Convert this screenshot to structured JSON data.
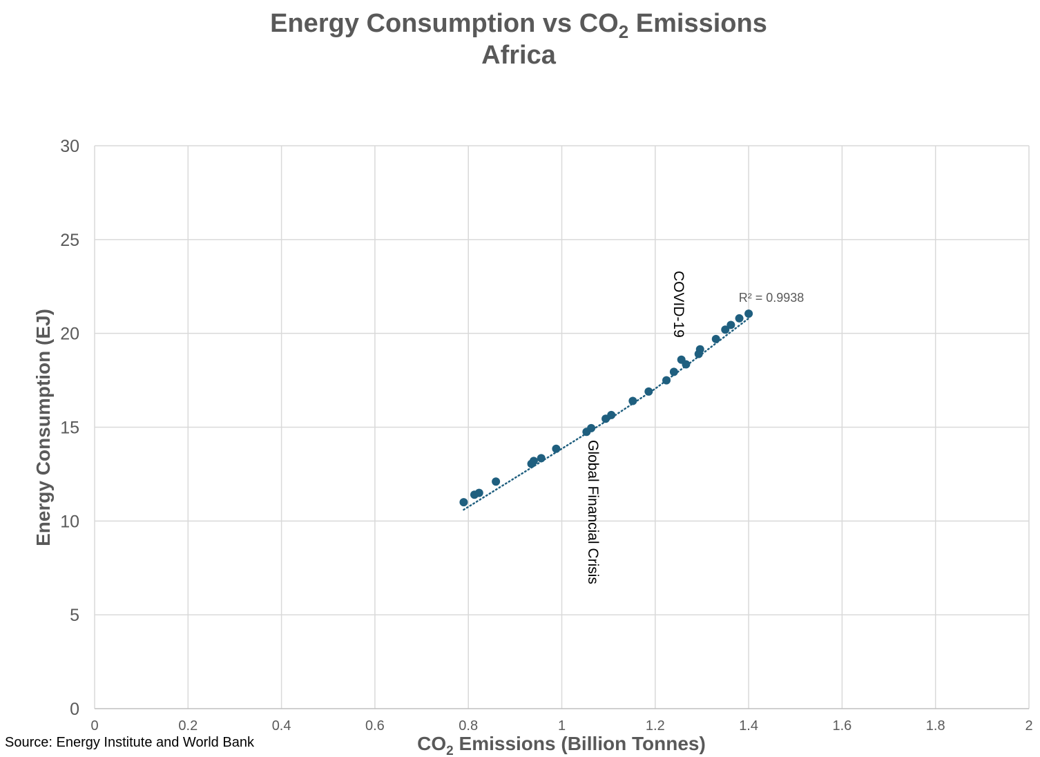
{
  "chart_data": {
    "type": "scatter",
    "title": {
      "line1_prefix": "Energy Consumption vs CO",
      "line1_subscript": "2",
      "line1_suffix": " Emissions",
      "line2": "Africa"
    },
    "xlabel": {
      "prefix": "CO",
      "subscript": "2",
      "suffix": " Emissions (Billion Tonnes)"
    },
    "ylabel": "Energy Consumption (EJ)",
    "xlim": [
      0,
      2
    ],
    "ylim": [
      0,
      30
    ],
    "x_ticks": [
      0,
      0.2,
      0.4,
      0.6,
      0.8,
      1,
      1.2,
      1.4,
      1.6,
      1.8,
      2
    ],
    "x_tick_labels": [
      "0",
      "0.2",
      "0.4",
      "0.6",
      "0.8",
      "1",
      "1.2",
      "1.4",
      "1.6",
      "1.8",
      "2"
    ],
    "y_ticks": [
      0,
      5,
      10,
      15,
      20,
      25,
      30
    ],
    "y_tick_labels": [
      "0",
      "5",
      "10",
      "15",
      "20",
      "25",
      "30"
    ],
    "grid": true,
    "series": [
      {
        "name": "Africa",
        "color": "#1f5f7f",
        "points": [
          {
            "x": 0.79,
            "y": 11.0
          },
          {
            "x": 0.813,
            "y": 11.4
          },
          {
            "x": 0.823,
            "y": 11.5
          },
          {
            "x": 0.859,
            "y": 12.1
          },
          {
            "x": 0.935,
            "y": 13.05
          },
          {
            "x": 0.94,
            "y": 13.2
          },
          {
            "x": 0.956,
            "y": 13.35
          },
          {
            "x": 0.988,
            "y": 13.85
          },
          {
            "x": 1.053,
            "y": 14.75
          },
          {
            "x": 1.063,
            "y": 14.95
          },
          {
            "x": 1.094,
            "y": 15.45
          },
          {
            "x": 1.106,
            "y": 15.65
          },
          {
            "x": 1.152,
            "y": 16.4
          },
          {
            "x": 1.186,
            "y": 16.9
          },
          {
            "x": 1.224,
            "y": 17.5
          },
          {
            "x": 1.24,
            "y": 17.95
          },
          {
            "x": 1.256,
            "y": 18.6
          },
          {
            "x": 1.266,
            "y": 18.35
          },
          {
            "x": 1.293,
            "y": 18.9
          },
          {
            "x": 1.296,
            "y": 19.15
          },
          {
            "x": 1.33,
            "y": 19.7
          },
          {
            "x": 1.35,
            "y": 20.2
          },
          {
            "x": 1.362,
            "y": 20.45
          },
          {
            "x": 1.38,
            "y": 20.8
          },
          {
            "x": 1.4,
            "y": 21.05
          }
        ]
      }
    ],
    "trendline": {
      "type": "polynomial",
      "style": "dotted",
      "color": "#1f5f7f",
      "x_start": 0.79,
      "x_end": 1.4,
      "points": [
        {
          "x": 0.79,
          "y": 10.6
        },
        {
          "x": 0.9,
          "y": 12.3
        },
        {
          "x": 1.0,
          "y": 13.85
        },
        {
          "x": 1.1,
          "y": 15.4
        },
        {
          "x": 1.2,
          "y": 17.05
        },
        {
          "x": 1.3,
          "y": 18.9
        },
        {
          "x": 1.4,
          "y": 20.8
        }
      ],
      "r_squared_label": "R² = 0.9938"
    },
    "annotations": [
      {
        "text": "Global Financial Crisis",
        "x": 1.056,
        "y": 14.5,
        "rotation": 90
      },
      {
        "text": "COVID-19",
        "x": 1.252,
        "y": 23.3,
        "rotation": 90
      }
    ]
  },
  "source": "Source: Energy Institute and World Bank"
}
